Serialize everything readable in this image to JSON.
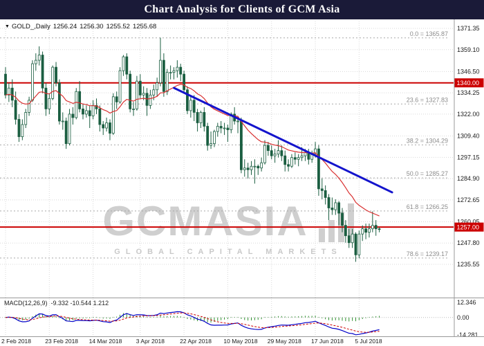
{
  "header": {
    "title": "Chart Analysis for Clients of GCM Asia"
  },
  "quote": {
    "symbol": "GOLD_,Daily",
    "open": "1256.24",
    "high": "1256.30",
    "low": "1255.52",
    "close": "1255.68"
  },
  "watermark": {
    "brand": "GCMASIA",
    "subtitle": "GLOBAL CAPITAL MARKETS"
  },
  "colors": {
    "header_bg": "#1a1a38",
    "header_fg": "#ffffff",
    "grid": "#d8d8d8",
    "candle": "#1b5e41",
    "candle_bull_fill": "#ffffff",
    "ma": "#d93030",
    "trendline": "#1414cc",
    "hline": "#cc0000",
    "fib_line": "#a8a8a8",
    "fib_text": "#8c8c8c",
    "macd_line": "#0000c8",
    "macd_signal": "#cc0000",
    "macd_hist": "#2f8f2f",
    "axis_text": "#1a1a1a",
    "separator": "#999999",
    "badge_text": "#ffffff"
  },
  "chart_data": {
    "type": "candlestick",
    "symbol": "GOLD_",
    "timeframe": "Daily",
    "y_axis": {
      "ticks": [
        1371.35,
        1359.1,
        1346.5,
        1334.25,
        1322.0,
        1309.4,
        1297.15,
        1284.9,
        1272.65,
        1260.05,
        1247.8,
        1235.55
      ]
    },
    "time_ticks": [
      {
        "label": "2 Feb 2018",
        "bar": 0
      },
      {
        "label": "23 Feb 2018",
        "bar": 13
      },
      {
        "label": "14 Mar 2018",
        "bar": 26
      },
      {
        "label": "3 Apr 2018",
        "bar": 40
      },
      {
        "label": "22 Apr 2018",
        "bar": 53
      },
      {
        "label": "10 May 2018",
        "bar": 66
      },
      {
        "label": "29 May 2018",
        "bar": 79
      },
      {
        "label": "17 Jun 2018",
        "bar": 92
      },
      {
        "label": "5 Jul 2018",
        "bar": 105
      }
    ],
    "candles": [
      [
        1345,
        1349,
        1331,
        1333
      ],
      [
        1333,
        1340,
        1329,
        1337
      ],
      [
        1337,
        1342,
        1326,
        1330
      ],
      [
        1330,
        1335,
        1316,
        1319
      ],
      [
        1319,
        1322,
        1306,
        1309
      ],
      [
        1309,
        1319,
        1307,
        1316
      ],
      [
        1316,
        1325,
        1314,
        1323
      ],
      [
        1323,
        1332,
        1321,
        1330
      ],
      [
        1330,
        1353,
        1329,
        1351
      ],
      [
        1351,
        1357,
        1347,
        1353
      ],
      [
        1353,
        1361,
        1350,
        1356
      ],
      [
        1356,
        1358,
        1334,
        1337
      ],
      [
        1337,
        1340,
        1321,
        1325
      ],
      [
        1325,
        1334,
        1322,
        1331
      ],
      [
        1331,
        1350,
        1330,
        1349
      ],
      [
        1349,
        1352,
        1338,
        1340
      ],
      [
        1340,
        1342,
        1316,
        1318
      ],
      [
        1318,
        1323,
        1313,
        1318
      ],
      [
        1318,
        1320,
        1302,
        1305
      ],
      [
        1305,
        1325,
        1304,
        1322
      ],
      [
        1322,
        1326,
        1316,
        1320
      ],
      [
        1320,
        1337,
        1319,
        1335
      ],
      [
        1335,
        1341,
        1323,
        1325
      ],
      [
        1325,
        1328,
        1319,
        1322
      ],
      [
        1322,
        1327,
        1320,
        1324
      ],
      [
        1324,
        1327,
        1314,
        1321
      ],
      [
        1321,
        1330,
        1319,
        1327
      ],
      [
        1327,
        1331,
        1322,
        1325
      ],
      [
        1325,
        1327,
        1312,
        1316
      ],
      [
        1316,
        1318,
        1310,
        1314
      ],
      [
        1314,
        1320,
        1312,
        1317
      ],
      [
        1317,
        1319,
        1307,
        1311
      ],
      [
        1311,
        1334,
        1310,
        1332
      ],
      [
        1332,
        1335,
        1325,
        1329
      ],
      [
        1329,
        1349,
        1328,
        1347
      ],
      [
        1347,
        1356,
        1344,
        1355
      ],
      [
        1355,
        1357,
        1342,
        1345
      ],
      [
        1345,
        1347,
        1323,
        1325
      ],
      [
        1325,
        1329,
        1321,
        1325
      ],
      [
        1325,
        1344,
        1324,
        1341
      ],
      [
        1341,
        1345,
        1331,
        1333
      ],
      [
        1333,
        1338,
        1330,
        1334
      ],
      [
        1334,
        1337,
        1321,
        1327
      ],
      [
        1327,
        1336,
        1325,
        1333
      ],
      [
        1333,
        1339,
        1330,
        1336
      ],
      [
        1336,
        1343,
        1332,
        1340
      ],
      [
        1340,
        1366,
        1338,
        1353
      ],
      [
        1353,
        1357,
        1332,
        1335
      ],
      [
        1335,
        1348,
        1333,
        1346
      ],
      [
        1346,
        1350,
        1342,
        1346
      ],
      [
        1346,
        1349,
        1342,
        1347
      ],
      [
        1347,
        1353,
        1343,
        1349
      ],
      [
        1349,
        1351,
        1341,
        1345
      ],
      [
        1345,
        1347,
        1334,
        1336
      ],
      [
        1336,
        1338,
        1322,
        1324
      ],
      [
        1324,
        1332,
        1320,
        1330
      ],
      [
        1330,
        1333,
        1318,
        1323
      ],
      [
        1323,
        1325,
        1312,
        1317
      ],
      [
        1317,
        1324,
        1314,
        1323
      ],
      [
        1323,
        1326,
        1312,
        1315
      ],
      [
        1315,
        1317,
        1301,
        1304
      ],
      [
        1304,
        1312,
        1302,
        1305
      ],
      [
        1305,
        1313,
        1303,
        1312
      ],
      [
        1312,
        1317,
        1309,
        1315
      ],
      [
        1315,
        1318,
        1311,
        1314
      ],
      [
        1314,
        1317,
        1310,
        1314
      ],
      [
        1314,
        1316,
        1306,
        1313
      ],
      [
        1313,
        1323,
        1311,
        1322
      ],
      [
        1322,
        1326,
        1316,
        1318
      ],
      [
        1318,
        1321,
        1311,
        1318
      ],
      [
        1318,
        1320,
        1288,
        1290
      ],
      [
        1290,
        1296,
        1286,
        1291
      ],
      [
        1291,
        1294,
        1285,
        1290
      ],
      [
        1290,
        1295,
        1287,
        1292
      ],
      [
        1292,
        1296,
        1282,
        1292
      ],
      [
        1292,
        1293,
        1287,
        1291
      ],
      [
        1291,
        1297,
        1289,
        1294
      ],
      [
        1294,
        1307,
        1293,
        1304
      ],
      [
        1304,
        1306,
        1298,
        1301
      ],
      [
        1301,
        1304,
        1296,
        1298
      ],
      [
        1298,
        1302,
        1294,
        1299
      ],
      [
        1299,
        1307,
        1297,
        1301
      ],
      [
        1301,
        1304,
        1295,
        1298
      ],
      [
        1298,
        1301,
        1289,
        1293
      ],
      [
        1293,
        1296,
        1289,
        1292
      ],
      [
        1292,
        1299,
        1291,
        1297
      ],
      [
        1297,
        1300,
        1293,
        1296
      ],
      [
        1296,
        1299,
        1292,
        1297
      ],
      [
        1297,
        1303,
        1295,
        1298
      ],
      [
        1298,
        1302,
        1295,
        1300
      ],
      [
        1300,
        1302,
        1293,
        1296
      ],
      [
        1296,
        1301,
        1294,
        1299
      ],
      [
        1299,
        1306,
        1297,
        1302
      ],
      [
        1302,
        1304,
        1275,
        1279
      ],
      [
        1279,
        1285,
        1273,
        1278
      ],
      [
        1278,
        1281,
        1270,
        1274
      ],
      [
        1274,
        1276,
        1261,
        1268
      ],
      [
        1268,
        1274,
        1264,
        1267
      ],
      [
        1267,
        1273,
        1264,
        1271
      ],
      [
        1271,
        1272,
        1258,
        1265
      ],
      [
        1265,
        1268,
        1254,
        1258
      ],
      [
        1258,
        1261,
        1248,
        1252
      ],
      [
        1252,
        1256,
        1245,
        1248
      ],
      [
        1248,
        1256,
        1245,
        1253
      ],
      [
        1253,
        1254,
        1237,
        1241
      ],
      [
        1241,
        1255,
        1239,
        1253
      ],
      [
        1253,
        1258,
        1249,
        1256
      ],
      [
        1256,
        1259,
        1250,
        1254
      ],
      [
        1254,
        1259,
        1251,
        1256
      ],
      [
        1256,
        1266,
        1254,
        1258
      ],
      [
        1258,
        1261,
        1252,
        1256
      ],
      [
        1256,
        1257,
        1254,
        1255.7
      ]
    ],
    "ma": {
      "type": "EMA",
      "period": 20
    },
    "trendline": {
      "bar1": 50,
      "price1": 1337.1,
      "bar2": 114.8,
      "price2": 1277.0
    },
    "h_lines": [
      {
        "price": 1340.0,
        "label": "1340.00"
      },
      {
        "price": 1257.0,
        "label": "1257.00"
      }
    ],
    "fib_levels": [
      {
        "text": "0.0 = 1365.87",
        "price": 1365.87
      },
      {
        "text": "23.6 = 1327.83",
        "price": 1327.83
      },
      {
        "text": "38.2 = 1304.29",
        "price": 1304.29
      },
      {
        "text": "50.0 = 1285.27",
        "price": 1285.27
      },
      {
        "text": "61.8 = 1266.25",
        "price": 1266.25
      },
      {
        "text": "78.6 = 1239.17",
        "price": 1239.17
      }
    ],
    "macd": {
      "name": "MACD(12,26,9)",
      "values": "-9.332 -10.544 1.212",
      "fast": 12,
      "slow": 26,
      "signal_period": 9,
      "y_ticks": [
        {
          "label": "12.346",
          "value": 12.346
        },
        {
          "label": "0.00",
          "value": 0
        },
        {
          "label": "-14.281",
          "value": -14.281
        }
      ]
    }
  }
}
